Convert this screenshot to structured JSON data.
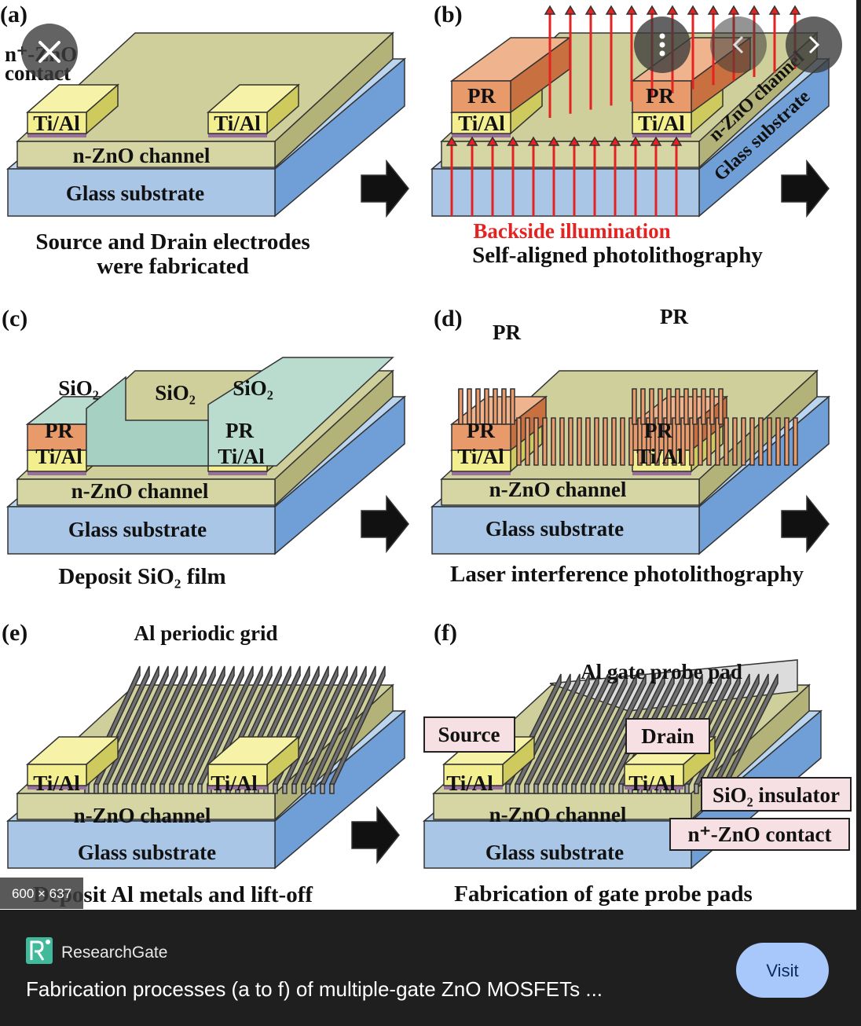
{
  "image": {
    "panels": [
      {
        "label": "(a)",
        "texts": [
          "n⁺-ZnO",
          "contact",
          "Ti/Al",
          "Ti/Al",
          "n-ZnO channel",
          "Glass substrate"
        ],
        "caption": [
          "Source and Drain electrodes",
          "were fabricated"
        ]
      },
      {
        "label": "(b)",
        "texts": [
          "PR",
          "PR",
          "Ti/Al",
          "Ti/Al",
          "n-ZnO channel",
          "Glass substrate",
          "Backside illumination"
        ],
        "caption": [
          "Self-aligned photolithography"
        ]
      },
      {
        "label": "(c)",
        "texts": [
          "SiO₂",
          "SiO₂",
          "SiO₂",
          "PR",
          "PR",
          "Ti/Al",
          "Ti/Al",
          "n-ZnO channel",
          "Glass substrate"
        ],
        "caption": [
          "Deposit SiO₂ film"
        ]
      },
      {
        "label": "(d)",
        "texts": [
          "PR",
          "PR",
          "PR",
          "PR",
          "Ti/Al",
          "Ti/Al",
          "n-ZnO channel",
          "Glass substrate"
        ],
        "caption": [
          "Laser interference photolithography"
        ]
      },
      {
        "label": "(e)",
        "texts": [
          "Al periodic grid",
          "Ti/Al",
          "Ti/Al",
          "n-ZnO channel",
          "Glass substrate"
        ],
        "caption": [
          "Deposit Al metals and lift-off"
        ]
      },
      {
        "label": "(f)",
        "texts": [
          "Al gate probe pad",
          "Source",
          "Drain",
          "Ti/Al",
          "Ti/Al",
          "SiO₂ insulator",
          "n⁺-ZnO contact",
          "n-ZnO channel",
          "Glass substrate"
        ],
        "caption": [
          "Fabrication of gate probe pads"
        ]
      }
    ],
    "size_badge": "600 × 637"
  },
  "footer": {
    "source": "ResearchGate",
    "title": "Fabrication processes (a to f) of multiple-gate ZnO MOSFETs ...",
    "button": "Visit"
  }
}
